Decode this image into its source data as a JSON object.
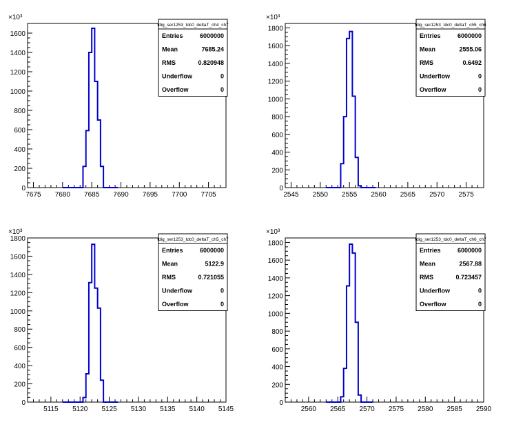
{
  "style": {
    "line_color": "#0000cc",
    "axis_color": "#000000",
    "background": "#ffffff"
  },
  "chart_data": [
    {
      "type": "histogram",
      "name": "tdig_ser1253_tdc0_deltaT_ch4_ch7",
      "exponent_label": "×10³",
      "xlim": [
        7674,
        7708
      ],
      "ylim": [
        0,
        1700
      ],
      "xticks": [
        7675,
        7680,
        7685,
        7690,
        7695,
        7700,
        7705
      ],
      "yticks": [
        0,
        200,
        400,
        600,
        800,
        1000,
        1200,
        1400,
        1600
      ],
      "bins": [
        [
          7680,
          7683.5,
          0
        ],
        [
          7683.5,
          7684,
          220
        ],
        [
          7684,
          7684.5,
          590
        ],
        [
          7684.5,
          7685,
          1400
        ],
        [
          7685,
          7685.5,
          1650
        ],
        [
          7685.5,
          7686,
          1100
        ],
        [
          7686,
          7686.5,
          700
        ],
        [
          7686.5,
          7687,
          220
        ],
        [
          7687,
          7689.5,
          0
        ]
      ],
      "stats": [
        {
          "label": "Entries",
          "value": "6000000"
        },
        {
          "label": "Mean",
          "value": "7685.24"
        },
        {
          "label": "RMS",
          "value": "0.820948"
        },
        {
          "label": "Underflow",
          "value": "0"
        },
        {
          "label": "Overflow",
          "value": "0"
        }
      ]
    },
    {
      "type": "histogram",
      "name": "tdig_ser1253_tdc0_deltaT_ch5_ch6",
      "exponent_label": "×10³",
      "xlim": [
        2544,
        2578
      ],
      "ylim": [
        0,
        1850
      ],
      "xticks": [
        2545,
        2550,
        2555,
        2560,
        2565,
        2570,
        2575
      ],
      "yticks": [
        0,
        200,
        400,
        600,
        800,
        1000,
        1200,
        1400,
        1600,
        1800
      ],
      "bins": [
        [
          2551,
          2553.5,
          0
        ],
        [
          2553.5,
          2554,
          270
        ],
        [
          2554,
          2554.5,
          800
        ],
        [
          2554.5,
          2555,
          1680
        ],
        [
          2555,
          2555.5,
          1760
        ],
        [
          2555.5,
          2556,
          1030
        ],
        [
          2556,
          2556.5,
          340
        ],
        [
          2556.5,
          2557,
          20
        ],
        [
          2557,
          2559.5,
          0
        ]
      ],
      "stats": [
        {
          "label": "Entries",
          "value": "6000000"
        },
        {
          "label": "Mean",
          "value": "2555.06"
        },
        {
          "label": "RMS",
          "value": "0.6492"
        },
        {
          "label": "Underflow",
          "value": "0"
        },
        {
          "label": "Overflow",
          "value": "0"
        }
      ]
    },
    {
      "type": "histogram",
      "name": "tdig_ser1253_tdc0_deltaT_ch5_ch7",
      "exponent_label": "×10³",
      "xlim": [
        5111,
        5145
      ],
      "ylim": [
        0,
        1800
      ],
      "xticks": [
        5115,
        5120,
        5125,
        5130,
        5135,
        5140,
        5145
      ],
      "yticks": [
        0,
        200,
        400,
        600,
        800,
        1000,
        1200,
        1400,
        1600,
        1800
      ],
      "bins": [
        [
          5117,
          5120.5,
          0
        ],
        [
          5120.5,
          5121,
          50
        ],
        [
          5121,
          5121.5,
          310
        ],
        [
          5121.5,
          5122,
          1310
        ],
        [
          5122,
          5122.5,
          1730
        ],
        [
          5122.5,
          5123,
          1250
        ],
        [
          5123,
          5123.5,
          1030
        ],
        [
          5123.5,
          5124,
          240
        ],
        [
          5124,
          5126.5,
          0
        ]
      ],
      "stats": [
        {
          "label": "Entries",
          "value": "6000000"
        },
        {
          "label": "Mean",
          "value": "5122.9"
        },
        {
          "label": "RMS",
          "value": "0.721055"
        },
        {
          "label": "Underflow",
          "value": "0"
        },
        {
          "label": "Overflow",
          "value": "0"
        }
      ]
    },
    {
      "type": "histogram",
      "name": "tdig_ser1253_tdc0_deltaT_ch6_ch7",
      "exponent_label": "×10³",
      "xlim": [
        2556,
        2590
      ],
      "ylim": [
        0,
        1850
      ],
      "xticks": [
        2560,
        2565,
        2570,
        2575,
        2580,
        2585,
        2590
      ],
      "yticks": [
        0,
        200,
        400,
        600,
        800,
        1000,
        1200,
        1400,
        1600,
        1800
      ],
      "bins": [
        [
          2563,
          2565.5,
          0
        ],
        [
          2565.5,
          2566,
          60
        ],
        [
          2566,
          2566.5,
          380
        ],
        [
          2566.5,
          2567,
          1310
        ],
        [
          2567,
          2567.5,
          1780
        ],
        [
          2567.5,
          2568,
          1680
        ],
        [
          2568,
          2568.5,
          900
        ],
        [
          2568.5,
          2569,
          80
        ],
        [
          2569,
          2571,
          0
        ]
      ],
      "stats": [
        {
          "label": "Entries",
          "value": "6000000"
        },
        {
          "label": "Mean",
          "value": "2567.88"
        },
        {
          "label": "RMS",
          "value": "0.723457"
        },
        {
          "label": "Underflow",
          "value": "0"
        },
        {
          "label": "Overflow",
          "value": "0"
        }
      ]
    }
  ]
}
